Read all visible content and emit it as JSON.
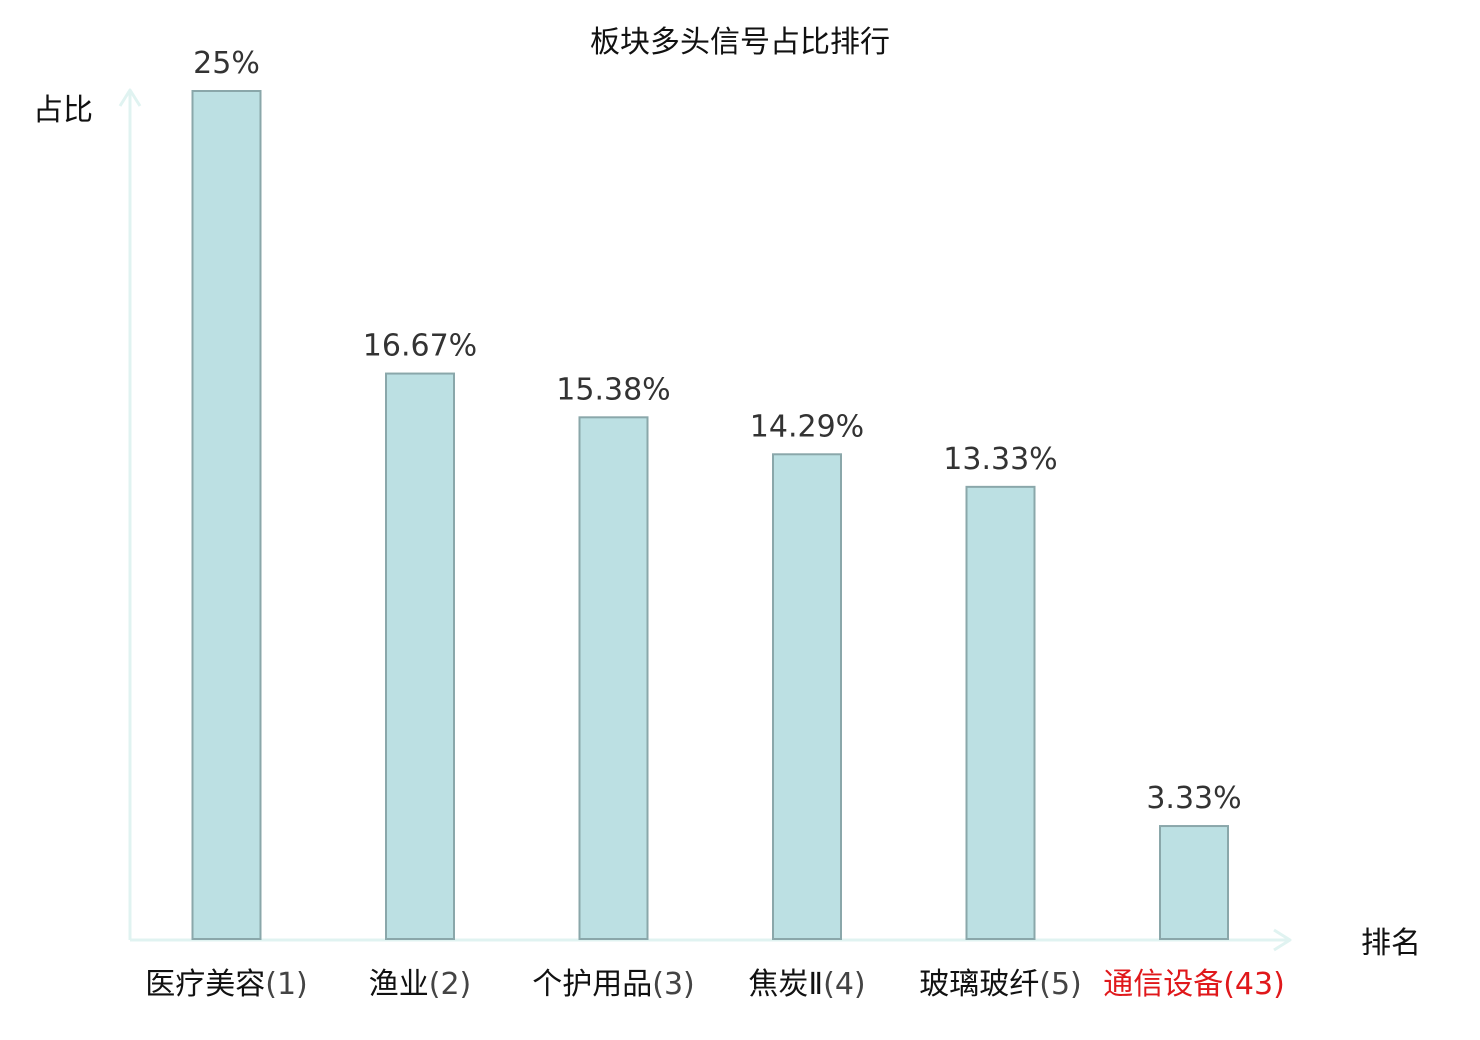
{
  "colors": {
    "bar_fill": "#bce0e3",
    "bar_stroke": "#8aa7aa",
    "axis": "#e0f3f1",
    "text": "#111111",
    "value_text": "#333333",
    "name_text": "#111111",
    "rank_text": "#444444",
    "highlight": "#e0181b"
  },
  "chart_data": {
    "type": "bar",
    "title": "板块多头信号占比排行",
    "ylabel": "占比",
    "xlabel": "排名",
    "ylim": [
      0,
      25
    ],
    "grid": false,
    "legend": "none",
    "categories": [
      {
        "name": "医疗美容",
        "rank": "(1)",
        "highlight": false
      },
      {
        "name": "渔业",
        "rank": "(2)",
        "highlight": false
      },
      {
        "name": "个护用品",
        "rank": "(3)",
        "highlight": false
      },
      {
        "name": "焦炭Ⅱ",
        "rank": "(4)",
        "highlight": false
      },
      {
        "name": "玻璃玻纤",
        "rank": "(5)",
        "highlight": false
      },
      {
        "name": "通信设备",
        "rank": "(43)",
        "highlight": true
      }
    ],
    "values": [
      25,
      16.67,
      15.38,
      14.29,
      13.33,
      3.33
    ],
    "value_labels": [
      "25%",
      "16.67%",
      "15.38%",
      "14.29%",
      "13.33%",
      "3.33%"
    ]
  }
}
